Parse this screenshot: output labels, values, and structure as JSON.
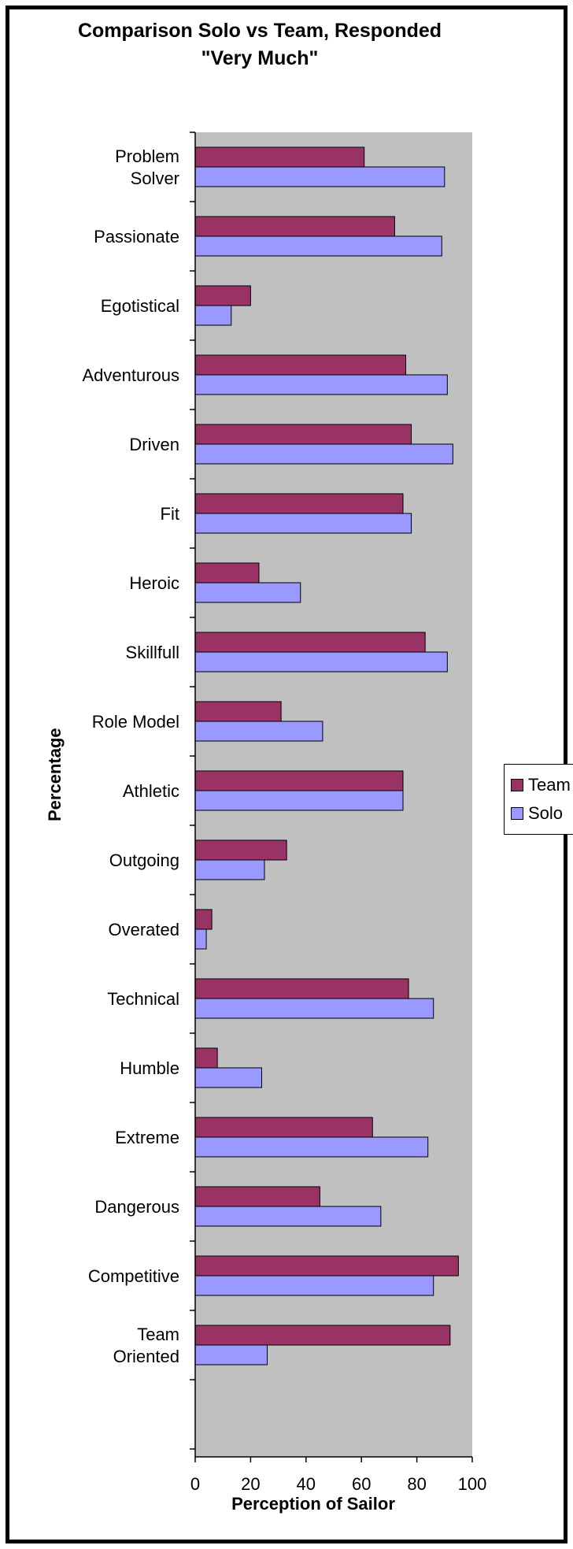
{
  "chart_data": {
    "type": "bar",
    "orientation": "horizontal",
    "title": "Comparison Solo vs Team, Responded \"Very Much\"",
    "xlabel": "Perception of Sailor",
    "ylabel": "Percentage",
    "xlim": [
      0,
      100
    ],
    "xticks": [
      0,
      20,
      40,
      60,
      80,
      100
    ],
    "grid": false,
    "legend_position": "right",
    "categories": [
      "Problem Solver",
      "Passionate",
      "Egotistical",
      "Adventurous",
      "Driven",
      "Fit",
      "Heroic",
      "Skillfull",
      "Role Model",
      "Athletic",
      "Outgoing",
      "Overated",
      "Technical",
      "Humble",
      "Extreme",
      "Dangerous",
      "Competitive",
      "Team Oriented"
    ],
    "series": [
      {
        "name": "Team",
        "color": "#993366",
        "values": [
          61,
          72,
          20,
          76,
          78,
          75,
          23,
          83,
          31,
          75,
          33,
          6,
          77,
          8,
          64,
          45,
          95,
          92
        ]
      },
      {
        "name": "Solo",
        "color": "#9999ff",
        "values": [
          90,
          89,
          13,
          91,
          93,
          78,
          38,
          91,
          46,
          75,
          25,
          4,
          86,
          24,
          84,
          67,
          86,
          26
        ]
      }
    ],
    "plot_background": "#c0c0c0"
  }
}
